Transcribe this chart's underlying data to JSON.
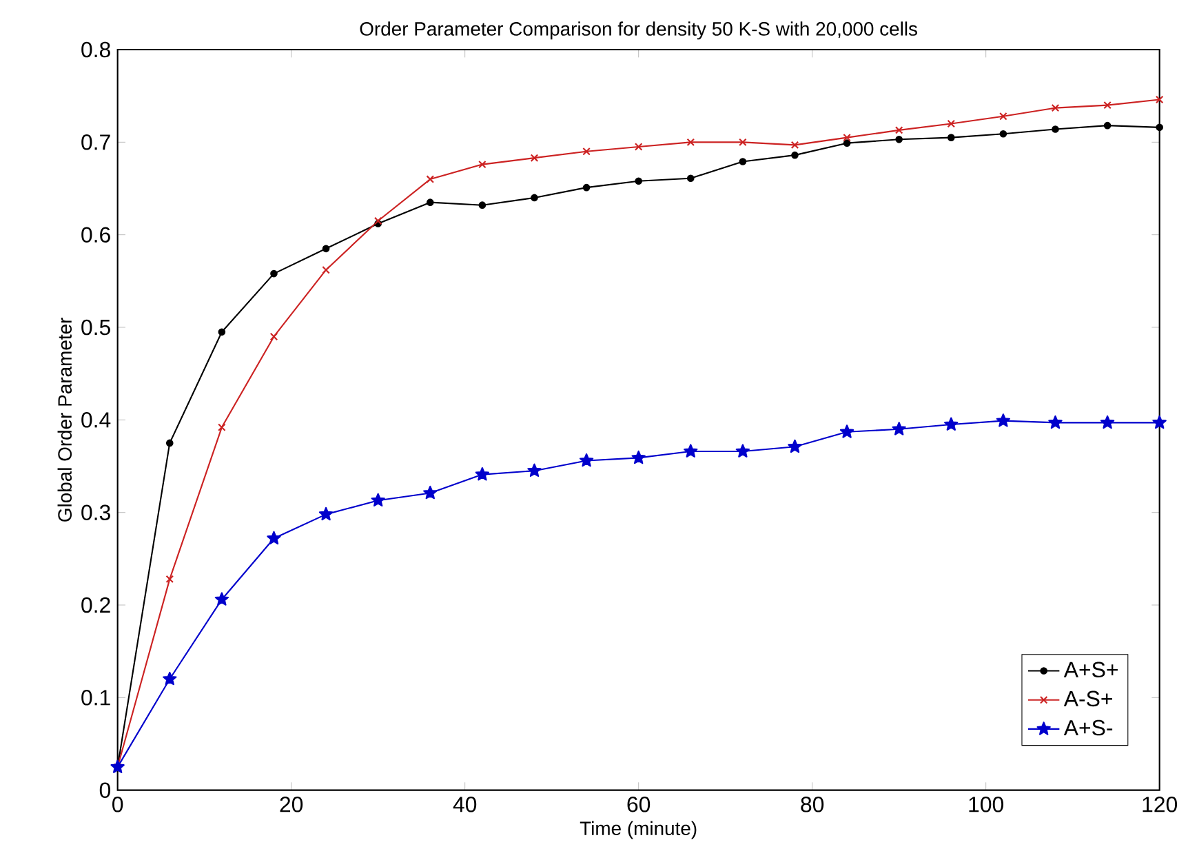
{
  "chart_data": {
    "type": "line",
    "title": "Order Parameter Comparison for density 50 K-S with 20,000 cells",
    "xlabel": "Time (minute)",
    "ylabel": "Global Order Parameter",
    "x": [
      0,
      6,
      12,
      18,
      24,
      30,
      36,
      42,
      48,
      54,
      60,
      66,
      72,
      78,
      84,
      90,
      96,
      102,
      108,
      114,
      120
    ],
    "series": [
      {
        "name": "A+S+",
        "color": "#000000",
        "marker": "circle",
        "values": [
          0.025,
          0.375,
          0.495,
          0.558,
          0.585,
          0.612,
          0.635,
          0.632,
          0.64,
          0.651,
          0.658,
          0.661,
          0.679,
          0.686,
          0.699,
          0.703,
          0.705,
          0.709,
          0.714,
          0.718,
          0.716
        ]
      },
      {
        "name": "A-S+",
        "color": "#cc2222",
        "marker": "cross",
        "values": [
          0.025,
          0.228,
          0.392,
          0.49,
          0.562,
          0.615,
          0.66,
          0.676,
          0.683,
          0.69,
          0.695,
          0.7,
          0.7,
          0.697,
          0.705,
          0.713,
          0.72,
          0.728,
          0.737,
          0.74,
          0.746
        ]
      },
      {
        "name": "A+S-",
        "color": "#0000cc",
        "marker": "star",
        "values": [
          0.025,
          0.12,
          0.206,
          0.272,
          0.298,
          0.313,
          0.321,
          0.341,
          0.345,
          0.356,
          0.359,
          0.366,
          0.366,
          0.371,
          0.387,
          0.39,
          0.395,
          0.399,
          0.397,
          0.397,
          0.397
        ]
      }
    ],
    "xlim": [
      0,
      120
    ],
    "xticks": [
      0,
      20,
      40,
      60,
      80,
      100,
      120
    ],
    "ylim": [
      0,
      0.8
    ],
    "yticks": [
      0,
      0.1,
      0.2,
      0.3,
      0.4,
      0.5,
      0.6,
      0.7,
      0.8
    ],
    "legend": "bottom right",
    "line_style": "solid",
    "grid": false
  }
}
